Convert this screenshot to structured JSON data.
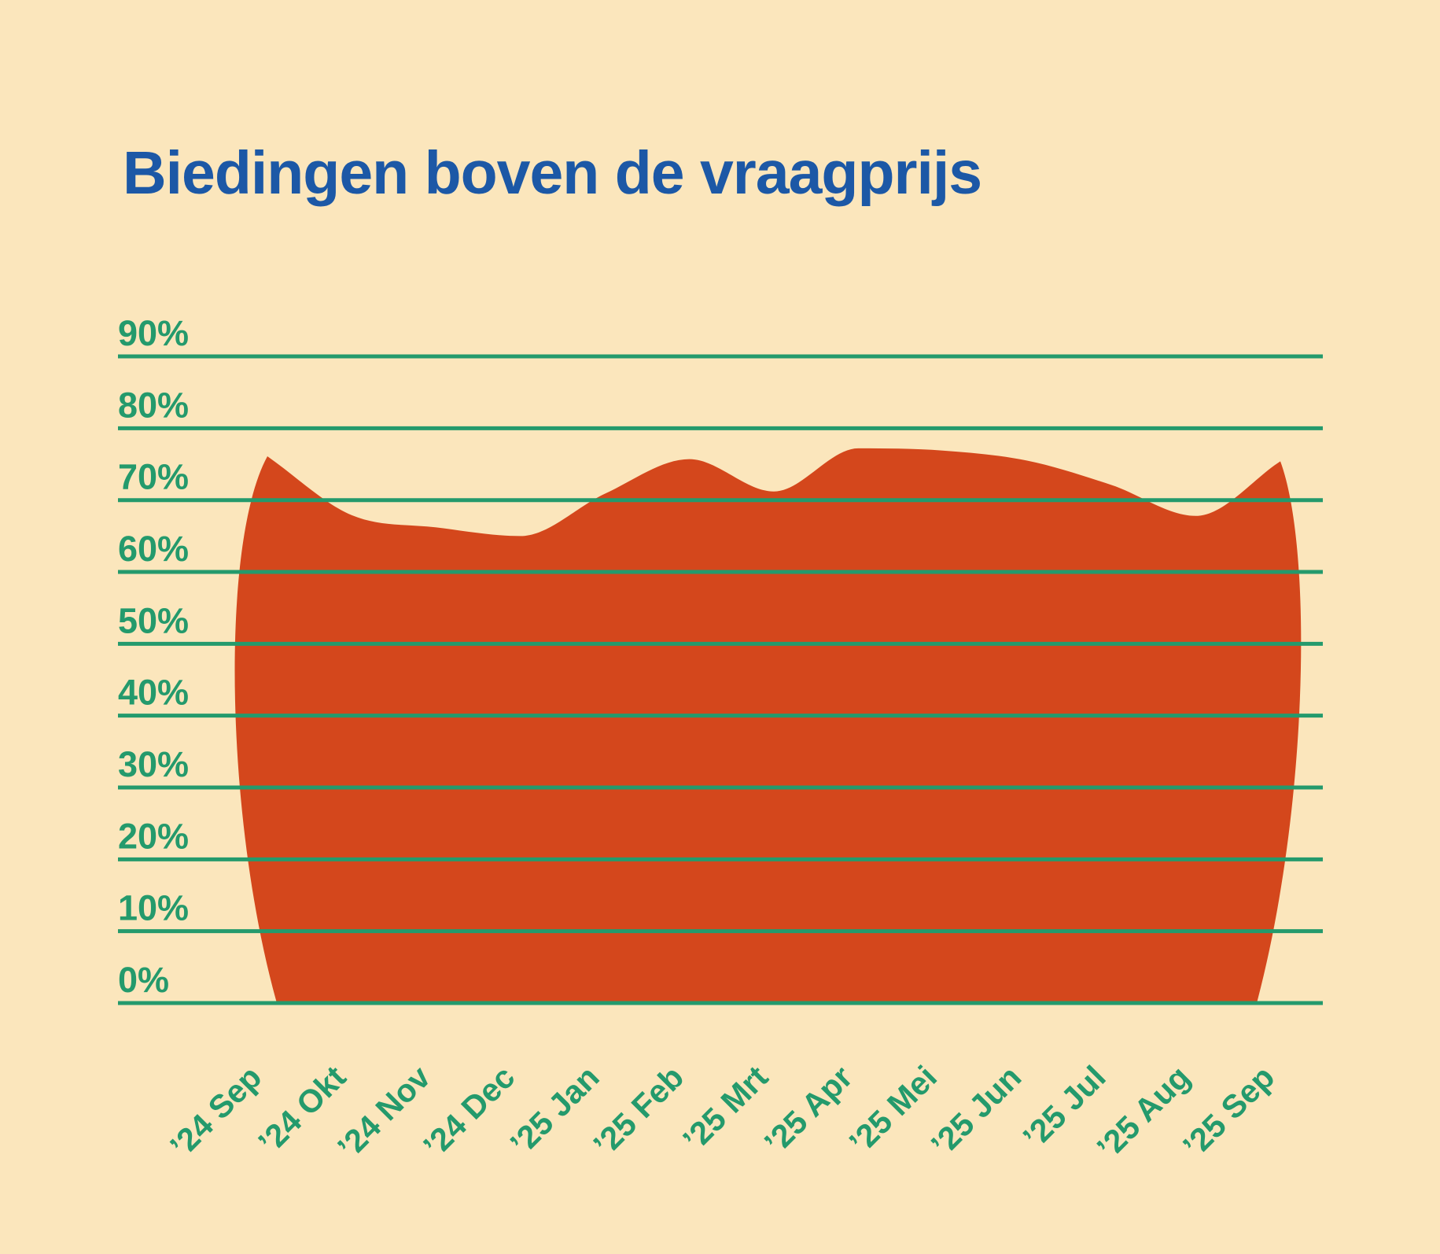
{
  "title": "Biedingen boven de vraagprijs",
  "colors": {
    "background": "#FBE6BC",
    "title": "#1C58A6",
    "axis": "#249A6C",
    "area": "#D4471C"
  },
  "chart_data": {
    "type": "area",
    "title": "Biedingen boven de vraagprijs",
    "xlabel": "",
    "ylabel": "",
    "categories": [
      "’24 Sep",
      "’24 Okt",
      "’24 Nov",
      "’24 Dec",
      "’25 Jan",
      "’25 Feb",
      "’25 Mrt",
      "’25 Apr",
      "’25 Mei",
      "’25 Jun",
      "’25 Jul",
      "’25 Aug",
      "’25 Sep"
    ],
    "series": [
      {
        "name": "Biedingen boven de vraagprijs (%)",
        "values": [
          76.1,
          67.9,
          66.2,
          65.0,
          70.9,
          75.7,
          71.2,
          77.2,
          76.9,
          75.5,
          72.1,
          67.8,
          75.4
        ]
      }
    ],
    "ylim": [
      0,
      90
    ],
    "y_tick_step": 10,
    "y_tick_labels": [
      "0%",
      "10%",
      "20%",
      "30%",
      "40%",
      "50%",
      "60%",
      "70%",
      "80%",
      "90%"
    ],
    "grid": "horizontal-gridlines-on-top-of-area",
    "legend": "none",
    "x_label_rotation_deg": -45
  }
}
